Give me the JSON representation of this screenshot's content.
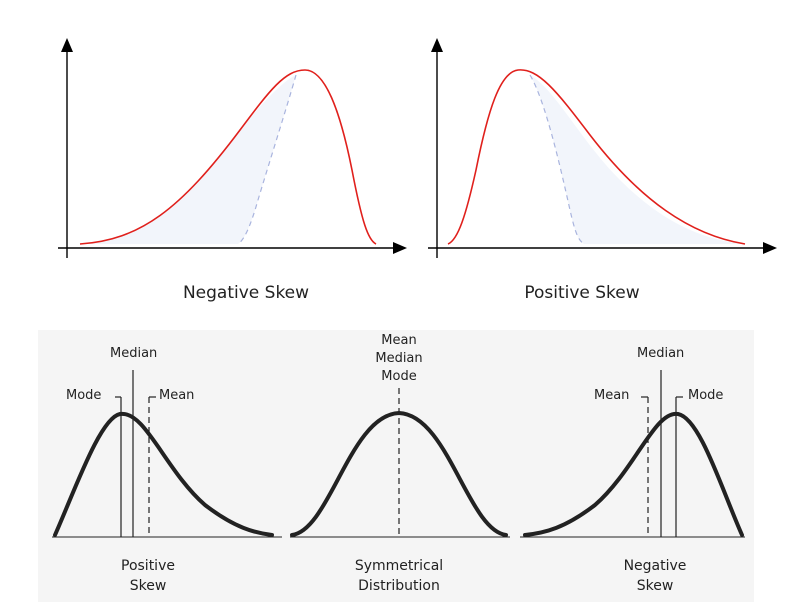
{
  "top_panels": [
    {
      "caption": "Negative Skew"
    },
    {
      "caption": "Positive Skew"
    }
  ],
  "bottom_panels": [
    {
      "caption_line1": "Positive",
      "caption_line2": "Skew",
      "labels": {
        "median": "Median",
        "mode": "Mode",
        "mean": "Mean"
      }
    },
    {
      "caption_line1": "Symmetrical",
      "caption_line2": "Distribution",
      "labels": {
        "mean": "Mean",
        "median": "Median",
        "mode": "Mode"
      }
    },
    {
      "caption_line1": "Negative",
      "caption_line2": "Skew",
      "labels": {
        "median": "Median",
        "mean": "Mean",
        "mode": "Mode"
      }
    }
  ],
  "colors": {
    "curve_top": "#e0201c",
    "dashed_top": "#a9b4de",
    "fill_top": "#f2f5fb",
    "curve_bottom": "#222222",
    "bottom_bg": "#f5f5f5"
  }
}
